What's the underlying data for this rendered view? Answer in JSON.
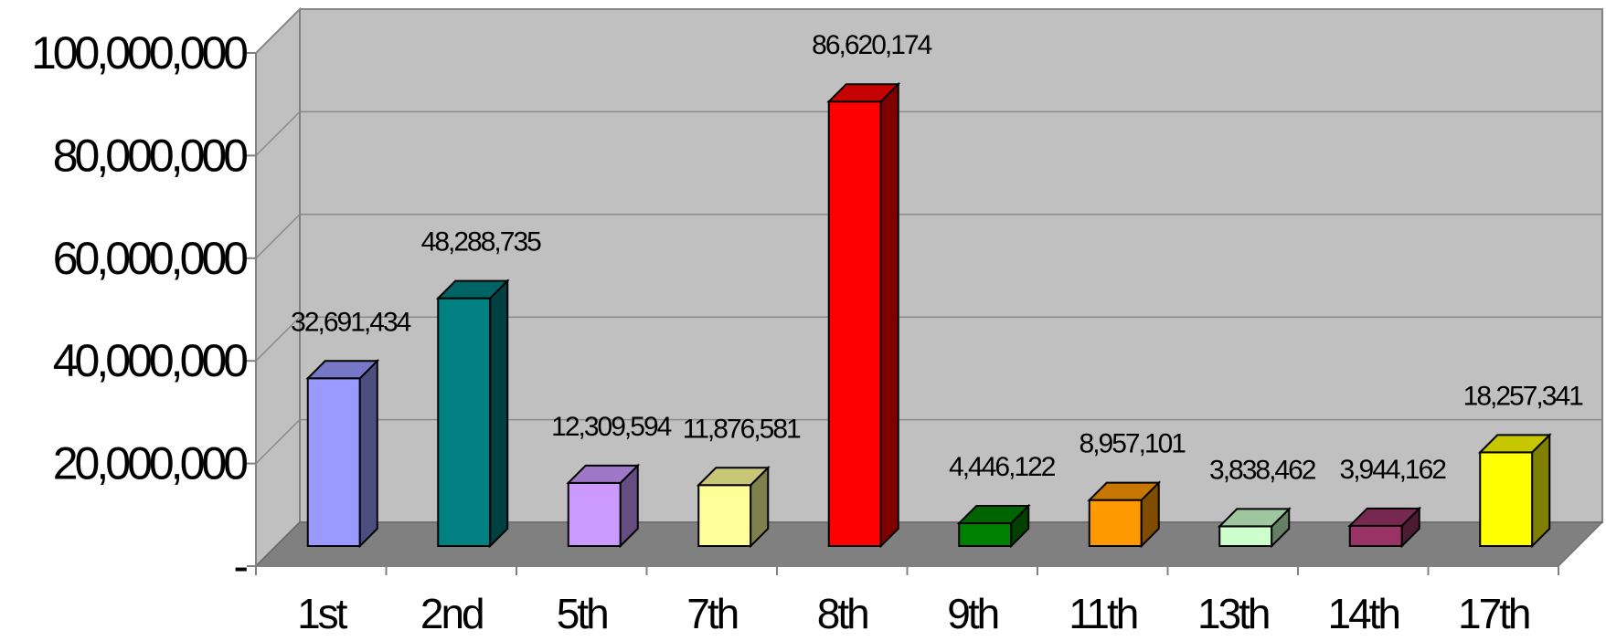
{
  "chart_data": {
    "type": "bar",
    "style": "3d-column",
    "title": "",
    "xlabel": "",
    "ylabel": "",
    "ylim": [
      0,
      100000000
    ],
    "y_ticks": [
      {
        "value": 0,
        "label": "-"
      },
      {
        "value": 20000000,
        "label": "20,000,000"
      },
      {
        "value": 40000000,
        "label": "40,000,000"
      },
      {
        "value": 60000000,
        "label": "60,000,000"
      },
      {
        "value": 80000000,
        "label": "80,000,000"
      },
      {
        "value": 100000000,
        "label": "100,000,000"
      }
    ],
    "categories": [
      "1st",
      "2nd",
      "5th",
      "7th",
      "8th",
      "9th",
      "11th",
      "13th",
      "14th",
      "17th"
    ],
    "values": [
      32691434,
      48288735,
      12309594,
      11876581,
      86620174,
      4446122,
      8957101,
      3838462,
      3944162,
      18257341
    ],
    "value_labels": [
      "32,691,434",
      "48,288,735",
      "12,309,594",
      "11,876,581",
      "86,620,174",
      "4,446,122",
      "8,957,101",
      "3,838,462",
      "3,944,162",
      "18,257,341"
    ],
    "colors": [
      "#9999ff",
      "#008080",
      "#cc99ff",
      "#ffff99",
      "#ff0000",
      "#008000",
      "#ff9900",
      "#ccffcc",
      "#993366",
      "#ffff00"
    ],
    "wall_color": "#c0c0c0",
    "floor_color": "#808080",
    "grid": true,
    "legend": "none"
  }
}
